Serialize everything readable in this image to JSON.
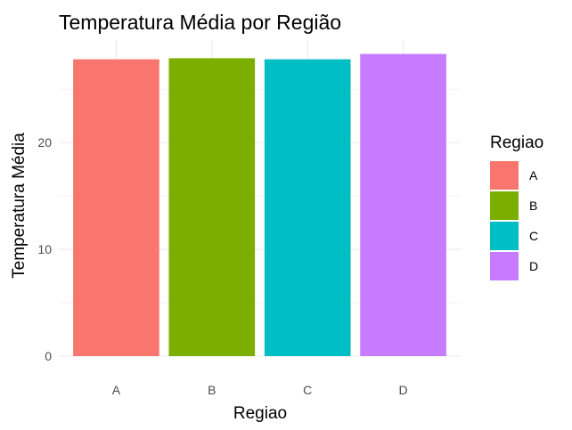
{
  "chart_data": {
    "type": "bar",
    "title": "Temperatura Média por Região",
    "xlabel": "Regiao",
    "ylabel": "Temperatura Média",
    "categories": [
      "A",
      "B",
      "C",
      "D"
    ],
    "values": [
      27.8,
      27.9,
      27.8,
      28.3
    ],
    "colors": [
      "#F8766D",
      "#7CAE00",
      "#00BFC4",
      "#C77CFF"
    ],
    "ylim": [
      0,
      29.6
    ],
    "yticks": [
      0,
      10,
      20
    ],
    "grid": true,
    "legend": {
      "title": "Regiao",
      "placement": "right",
      "entries": [
        "A",
        "B",
        "C",
        "D"
      ]
    }
  }
}
